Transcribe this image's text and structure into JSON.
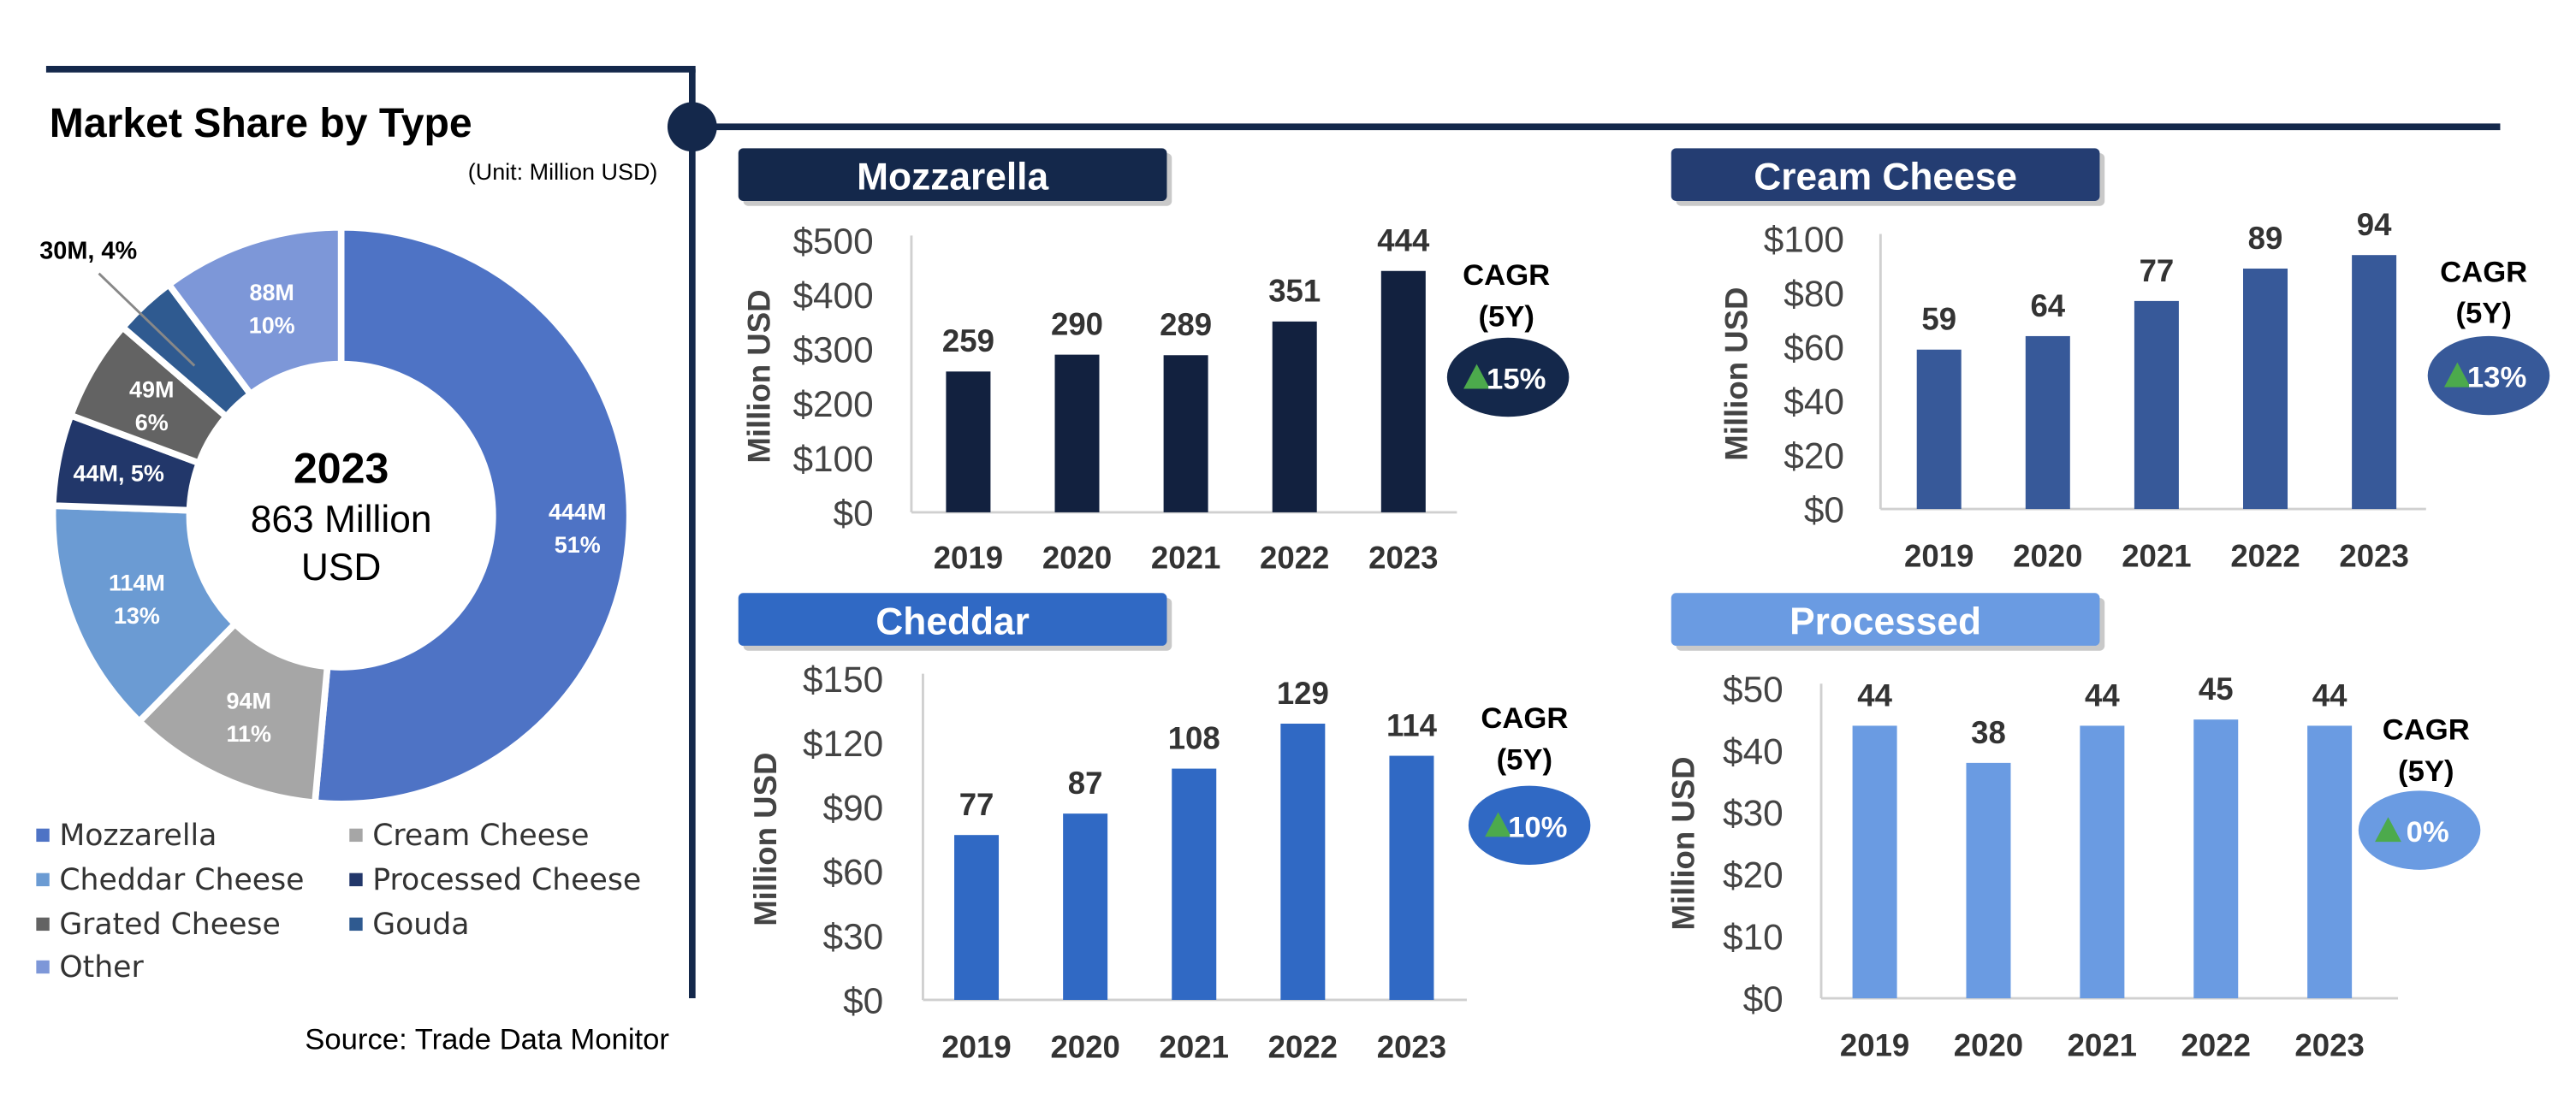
{
  "market_share": {
    "title": "Market Share by Type",
    "unit": "(Unit: Million USD)",
    "center_year": "2023",
    "center_line1": "863 Million",
    "center_line2": "USD",
    "callout_label": "30M, 4%",
    "source": "Source: Trade Data Monitor"
  },
  "cagr_label_line1": "CAGR",
  "cagr_label_line2": "(5Y)",
  "colors": {
    "navy": "#14284b",
    "mozzarella": "#12213f",
    "cream": "#375999",
    "cheddar": "#3069c4",
    "processed": "#6a9be2",
    "badge_arrow": "#4caa4c",
    "axis": "#d0d0d0"
  },
  "chart_data": [
    {
      "type": "pie",
      "title": "Market Share by Type",
      "total_label": "863 Million USD",
      "year": "2023",
      "slices": [
        {
          "name": "Mozzarella",
          "value": 444,
          "percent": 51,
          "label_a": "444M",
          "label_b": "51%",
          "color": "#4e73c5"
        },
        {
          "name": "Cream Cheese",
          "value": 94,
          "percent": 11,
          "label_a": "94M",
          "label_b": "11%",
          "color": "#a6a6a6"
        },
        {
          "name": "Cheddar Cheese",
          "value": 114,
          "percent": 13,
          "label_a": "114M",
          "label_b": "13%",
          "color": "#6b9bd3"
        },
        {
          "name": "Processed Cheese",
          "value": 44,
          "percent": 5,
          "label_a": "44M, 5%",
          "label_b": "",
          "color": "#22376a"
        },
        {
          "name": "Grated Cheese",
          "value": 49,
          "percent": 6,
          "label_a": "49M",
          "label_b": "6%",
          "color": "#636363"
        },
        {
          "name": "Gouda",
          "value": 30,
          "percent": 4,
          "label_a": "",
          "label_b": "",
          "color": "#2f5a90"
        },
        {
          "name": "Other",
          "value": 88,
          "percent": 10,
          "label_a": "88M",
          "label_b": "10%",
          "color": "#7d97d8"
        }
      ]
    },
    {
      "type": "bar",
      "key": "mozzarella",
      "title": "Mozzarella",
      "categories": [
        "2019",
        "2020",
        "2021",
        "2022",
        "2023"
      ],
      "values": [
        259,
        290,
        289,
        351,
        444
      ],
      "value_labels": [
        "259",
        "290",
        "289",
        "351",
        "444"
      ],
      "ylabel": "Million USD",
      "ylim": [
        0,
        500
      ],
      "ticks": [
        0,
        100,
        200,
        300,
        400,
        500
      ],
      "tick_labels": [
        "$0",
        "$100",
        "$200",
        "$300",
        "$400",
        "$500"
      ],
      "cagr": "15%"
    },
    {
      "type": "bar",
      "key": "cream",
      "title": "Cream Cheese",
      "categories": [
        "2019",
        "2020",
        "2021",
        "2022",
        "2023"
      ],
      "values": [
        59,
        64,
        77,
        89,
        94
      ],
      "value_labels": [
        "59",
        "64",
        "77",
        "89",
        "94"
      ],
      "ylabel": "Million USD",
      "ylim": [
        0,
        100
      ],
      "ticks": [
        0,
        20,
        40,
        60,
        80,
        100
      ],
      "tick_labels": [
        "$0",
        "$20",
        "$40",
        "$60",
        "$80",
        "$100"
      ],
      "cagr": "13%"
    },
    {
      "type": "bar",
      "key": "cheddar",
      "title": "Cheddar",
      "categories": [
        "2019",
        "2020",
        "2021",
        "2022",
        "2023"
      ],
      "values": [
        77,
        87,
        108,
        129,
        114
      ],
      "value_labels": [
        "77",
        "87",
        "108",
        "129",
        "114"
      ],
      "ylabel": "Million USD",
      "ylim": [
        0,
        150
      ],
      "ticks": [
        0,
        30,
        60,
        90,
        120,
        150
      ],
      "tick_labels": [
        "$0",
        "$30",
        "$60",
        "$90",
        "$120",
        "$150"
      ],
      "cagr": "10%"
    },
    {
      "type": "bar",
      "key": "processed",
      "title": "Processed",
      "categories": [
        "2019",
        "2020",
        "2021",
        "2022",
        "2023"
      ],
      "values": [
        44,
        38,
        44,
        45,
        44
      ],
      "value_labels": [
        "44",
        "38",
        "44",
        "45",
        "44"
      ],
      "ylabel": "Million USD",
      "ylim": [
        0,
        50
      ],
      "ticks": [
        0,
        10,
        20,
        30,
        40,
        50
      ],
      "tick_labels": [
        "$0",
        "$10",
        "$20",
        "$30",
        "$40",
        "$50"
      ],
      "cagr": "0%"
    }
  ]
}
